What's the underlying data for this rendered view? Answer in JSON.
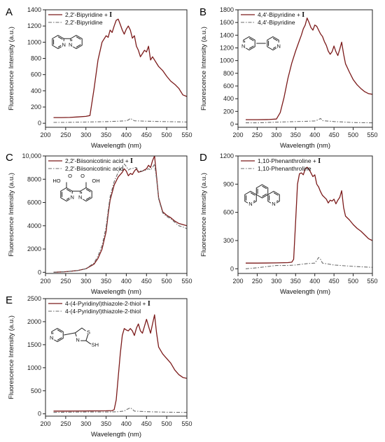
{
  "figure": {
    "id": "fluorescence-figure"
  },
  "chart_data": [
    {
      "type": "line",
      "panel_letter": "A",
      "xlabel": "Wavelength (nm)",
      "ylabel": "Fluorescence Intensity (a.u.)",
      "xlim": [
        200,
        550
      ],
      "ylim": [
        -50,
        1400
      ],
      "xticks": [
        200,
        250,
        300,
        350,
        400,
        450,
        500,
        550
      ],
      "yticks": [
        0,
        200,
        400,
        600,
        800,
        1000,
        1200,
        1400
      ],
      "xtick_labels": [
        "200",
        "250",
        "300",
        "350",
        "400",
        "450",
        "500",
        "550"
      ],
      "ytick_labels": [
        "0",
        "200",
        "400",
        "600",
        "800",
        "1000",
        "1200",
        "1400"
      ],
      "legend_position": "top-left",
      "structure": {
        "name": "2,2'-bipyridine",
        "labels": [
          "N",
          "N"
        ]
      },
      "series": [
        {
          "name": "2,2'-Bipyridine + ",
          "name_suffix": "I",
          "color": "#7b1a1a",
          "dash": "solid",
          "x": [
            220,
            240,
            260,
            280,
            300,
            310,
            320,
            330,
            340,
            350,
            355,
            360,
            365,
            370,
            375,
            380,
            385,
            390,
            395,
            400,
            405,
            410,
            415,
            420,
            425,
            430,
            435,
            440,
            445,
            450,
            455,
            460,
            465,
            470,
            475,
            480,
            490,
            500,
            510,
            520,
            530,
            540,
            550
          ],
          "y": [
            70,
            70,
            72,
            78,
            85,
            95,
            420,
            780,
            1000,
            1080,
            1060,
            1150,
            1120,
            1200,
            1270,
            1285,
            1220,
            1150,
            1100,
            1160,
            1200,
            1150,
            1050,
            1080,
            950,
            900,
            820,
            860,
            900,
            880,
            950,
            780,
            820,
            780,
            740,
            700,
            650,
            580,
            520,
            480,
            430,
            350,
            330
          ]
        },
        {
          "name": "2,2'-Bipyridine",
          "color": "#6b6b6b",
          "dash": "dashdot",
          "x": [
            220,
            250,
            300,
            350,
            380,
            400,
            405,
            410,
            415,
            420,
            450,
            500,
            550
          ],
          "y": [
            10,
            10,
            15,
            20,
            25,
            30,
            40,
            60,
            45,
            30,
            25,
            20,
            15
          ]
        }
      ]
    },
    {
      "type": "line",
      "panel_letter": "B",
      "xlabel": "Wavelength (nm)",
      "ylabel": "Fluorescence Intensity (a.u.)",
      "xlim": [
        200,
        550
      ],
      "ylim": [
        -50,
        1800
      ],
      "xticks": [
        200,
        250,
        300,
        350,
        400,
        450,
        500,
        550
      ],
      "yticks": [
        0,
        200,
        400,
        600,
        800,
        1000,
        1200,
        1400,
        1600,
        1800
      ],
      "xtick_labels": [
        "200",
        "250",
        "300",
        "350",
        "400",
        "450",
        "500",
        "550"
      ],
      "ytick_labels": [
        "0",
        "200",
        "400",
        "600",
        "800",
        "1000",
        "1200",
        "1400",
        "1600",
        "1800"
      ],
      "legend_position": "top-left",
      "structure": {
        "name": "4,4'-bipyridine",
        "labels": [
          "N",
          "N"
        ]
      },
      "series": [
        {
          "name": "4,4'-Bipyridine + ",
          "name_suffix": "I",
          "color": "#7b1a1a",
          "dash": "solid",
          "x": [
            220,
            250,
            280,
            300,
            310,
            320,
            330,
            340,
            350,
            360,
            365,
            370,
            375,
            380,
            385,
            390,
            395,
            400,
            405,
            410,
            415,
            420,
            425,
            430,
            435,
            440,
            445,
            450,
            455,
            460,
            465,
            470,
            475,
            480,
            490,
            500,
            510,
            520,
            530,
            540,
            550
          ],
          "y": [
            70,
            70,
            72,
            80,
            180,
            420,
            720,
            960,
            1150,
            1320,
            1400,
            1500,
            1560,
            1670,
            1600,
            1520,
            1480,
            1560,
            1540,
            1480,
            1420,
            1380,
            1300,
            1240,
            1150,
            1100,
            1140,
            1230,
            1140,
            1080,
            1180,
            1290,
            1100,
            950,
            820,
            700,
            620,
            560,
            510,
            480,
            470
          ]
        },
        {
          "name": "4,4'-Bipyridine",
          "color": "#6b6b6b",
          "dash": "dashdot",
          "x": [
            220,
            250,
            300,
            350,
            380,
            400,
            410,
            415,
            420,
            450,
            500,
            550
          ],
          "y": [
            20,
            20,
            30,
            40,
            45,
            50,
            70,
            90,
            55,
            40,
            25,
            20
          ]
        }
      ]
    },
    {
      "type": "line",
      "panel_letter": "C",
      "xlabel": "Wavelength (nm)",
      "ylabel": "Fluorescence Intensity (a.u.)",
      "xlim": [
        200,
        550
      ],
      "ylim": [
        -100,
        10000
      ],
      "xticks": [
        200,
        250,
        300,
        350,
        400,
        450,
        500,
        550
      ],
      "yticks": [
        0,
        2000,
        4000,
        6000,
        8000,
        10000
      ],
      "xtick_labels": [
        "200",
        "250",
        "300",
        "350",
        "400",
        "450",
        "500",
        "550"
      ],
      "ytick_labels": [
        "0",
        "2000",
        "4000",
        "6000",
        "8000",
        "10,000"
      ],
      "legend_position": "top-left",
      "structure": {
        "name": "2,2'-biisonicotinic acid",
        "labels": [
          "HO",
          "O",
          "N",
          "N",
          "O",
          "OH"
        ]
      },
      "series": [
        {
          "name": "2,2'-Biisonicotinic acid + ",
          "name_suffix": "I",
          "color": "#7b1a1a",
          "dash": "solid",
          "x": [
            220,
            250,
            280,
            300,
            320,
            330,
            340,
            350,
            355,
            360,
            370,
            380,
            390,
            395,
            400,
            405,
            410,
            415,
            420,
            425,
            430,
            440,
            450,
            455,
            460,
            465,
            470,
            475,
            480,
            490,
            500,
            510,
            520,
            530,
            540,
            550
          ],
          "y": [
            0,
            50,
            150,
            300,
            700,
            1200,
            2000,
            3500,
            5000,
            6200,
            7500,
            8200,
            8600,
            8900,
            8700,
            8300,
            8500,
            8400,
            8700,
            8900,
            8600,
            8700,
            8900,
            9200,
            9000,
            9600,
            10000,
            8200,
            6400,
            5200,
            4900,
            4700,
            4400,
            4200,
            4100,
            4000
          ]
        },
        {
          "name": "2,2'-Biisonicotinic acid",
          "color": "#6b6b6b",
          "dash": "dashdot",
          "x": [
            220,
            250,
            280,
            300,
            320,
            330,
            340,
            350,
            355,
            360,
            370,
            380,
            390,
            395,
            400,
            405,
            410,
            415,
            420,
            425,
            430,
            440,
            450,
            455,
            460,
            465,
            470,
            475,
            480,
            490,
            500,
            510,
            520,
            530,
            540,
            550
          ],
          "y": [
            0,
            50,
            150,
            300,
            800,
            1400,
            2300,
            3900,
            5300,
            6500,
            7800,
            8600,
            9100,
            9300,
            9100,
            8800,
            8900,
            8900,
            9000,
            9000,
            8700,
            8700,
            8800,
            8900,
            8800,
            9000,
            9300,
            8000,
            6300,
            5100,
            4800,
            4600,
            4300,
            4000,
            3900,
            3750
          ]
        }
      ]
    },
    {
      "type": "line",
      "panel_letter": "D",
      "xlabel": "Wavelength (nm)",
      "ylabel": "Fluorescence Intensity (a.u.)",
      "xlim": [
        200,
        550
      ],
      "ylim": [
        -50,
        1200
      ],
      "xticks": [
        200,
        250,
        300,
        350,
        400,
        450,
        500,
        550
      ],
      "yticks": [
        0,
        300,
        600,
        900,
        1200
      ],
      "xtick_labels": [
        "200",
        "250",
        "300",
        "350",
        "400",
        "450",
        "500",
        "550"
      ],
      "ytick_labels": [
        "0",
        "300",
        "600",
        "900",
        "1200"
      ],
      "legend_position": "top-left",
      "structure": {
        "name": "1,10-phenanthroline",
        "labels": [
          "N",
          "N"
        ]
      },
      "series": [
        {
          "name": "1,10-Phenanthroline + ",
          "name_suffix": "I",
          "color": "#7b1a1a",
          "dash": "solid",
          "x": [
            220,
            250,
            300,
            330,
            340,
            345,
            350,
            355,
            360,
            365,
            370,
            375,
            380,
            385,
            390,
            395,
            400,
            405,
            410,
            415,
            420,
            430,
            435,
            440,
            445,
            450,
            455,
            460,
            465,
            470,
            475,
            480,
            490,
            500,
            510,
            520,
            530,
            540,
            550
          ],
          "y": [
            60,
            60,
            62,
            65,
            70,
            100,
            500,
            900,
            1010,
            1020,
            1000,
            1060,
            1080,
            1060,
            1020,
            980,
            1000,
            900,
            870,
            820,
            780,
            740,
            700,
            730,
            720,
            740,
            690,
            730,
            760,
            830,
            650,
            560,
            520,
            470,
            430,
            400,
            360,
            320,
            300
          ]
        },
        {
          "name": "1,10-Phenanthroline",
          "color": "#6b6b6b",
          "dash": "dashdot",
          "x": [
            220,
            250,
            280,
            300,
            330,
            350,
            380,
            400,
            405,
            410,
            415,
            420,
            450,
            500,
            550
          ],
          "y": [
            0,
            10,
            25,
            35,
            35,
            40,
            55,
            60,
            90,
            120,
            100,
            60,
            40,
            25,
            15
          ]
        }
      ]
    },
    {
      "type": "line",
      "panel_letter": "E",
      "xlabel": "Wavelength (nm)",
      "ylabel": "Fluorescence Intensity (a.u.)",
      "xlim": [
        200,
        550
      ],
      "ylim": [
        -50,
        2500
      ],
      "xticks": [
        200,
        250,
        300,
        350,
        400,
        450,
        500,
        550
      ],
      "yticks": [
        0,
        500,
        1000,
        1500,
        2000,
        2500
      ],
      "xtick_labels": [
        "200",
        "250",
        "300",
        "350",
        "400",
        "450",
        "500",
        "550"
      ],
      "ytick_labels": [
        "0",
        "500",
        "1000",
        "1500",
        "2000",
        "2500"
      ],
      "legend_position": "top-left",
      "structure": {
        "name": "4-(4-pyridinyl)thiazole-2-thiol",
        "labels": [
          "N",
          "S",
          "N",
          "SH"
        ]
      },
      "series": [
        {
          "name": "4-(4-Pyridinyl)thiazole-2-thiol + ",
          "name_suffix": "I",
          "color": "#7b1a1a",
          "dash": "solid",
          "x": [
            220,
            250,
            300,
            350,
            365,
            370,
            375,
            380,
            385,
            390,
            395,
            400,
            405,
            410,
            415,
            420,
            425,
            430,
            435,
            440,
            445,
            450,
            455,
            460,
            465,
            470,
            475,
            480,
            490,
            500,
            510,
            520,
            530,
            540,
            550
          ],
          "y": [
            60,
            60,
            62,
            65,
            70,
            90,
            300,
            800,
            1300,
            1700,
            1850,
            1820,
            1800,
            1850,
            1800,
            1700,
            1860,
            1950,
            1800,
            1750,
            1900,
            2050,
            1900,
            1750,
            1950,
            2150,
            1750,
            1450,
            1300,
            1200,
            1100,
            950,
            850,
            790,
            770
          ]
        },
        {
          "name": "4-(4-Pyridinyl)thiazole-2-thiol",
          "color": "#6b6b6b",
          "dash": "dashdot",
          "x": [
            220,
            250,
            300,
            350,
            380,
            395,
            400,
            405,
            410,
            415,
            420,
            450,
            500,
            550
          ],
          "y": [
            30,
            35,
            40,
            40,
            45,
            60,
            90,
            110,
            130,
            100,
            60,
            45,
            35,
            30
          ]
        }
      ]
    }
  ]
}
